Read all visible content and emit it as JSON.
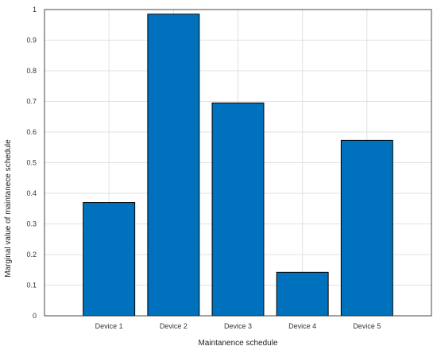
{
  "chart_data": {
    "type": "bar",
    "categories": [
      "Device 1",
      "Device 2",
      "Device 3",
      "Device 4",
      "Device 5"
    ],
    "values": [
      0.37,
      0.985,
      0.695,
      0.142,
      0.573
    ],
    "title": "",
    "xlabel": "Maintanence schedule",
    "ylabel": "Marginal value of maintanece schedule",
    "ylim": [
      0,
      1
    ],
    "yticks": [
      "0",
      "0.1",
      "0.2",
      "0.3",
      "0.4",
      "0.5",
      "0.6",
      "0.7",
      "0.8",
      "0.9",
      "1"
    ],
    "grid": true,
    "bar_color": "#0072BD"
  }
}
